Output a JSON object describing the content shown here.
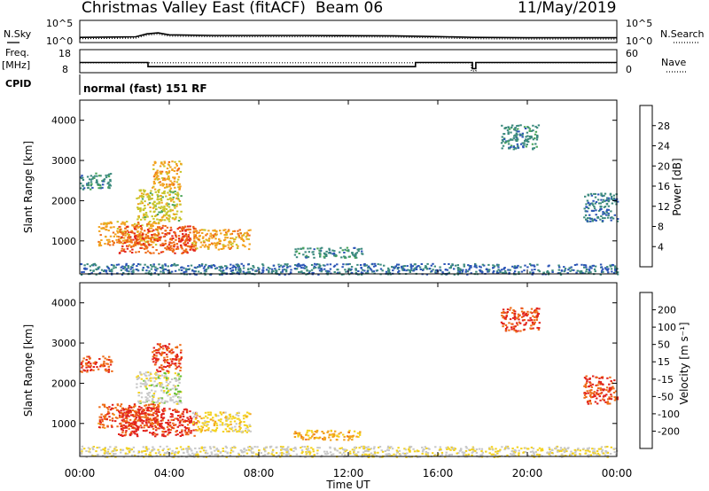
{
  "header": {
    "station": "Christmas Valley East (fitACF)",
    "beam": "Beam 06",
    "date": "11/May/2019"
  },
  "status_panel": {
    "nsky_label": "N.Sky",
    "nsearch_label": "N.Search",
    "freq_label_1": "Freq.",
    "freq_label_2": "[MHz]",
    "nave_label": "Nave",
    "cpid_label": "CPID",
    "cpid_value": "normal (fast) 151 RF",
    "noise_left_ticks": [
      "10^5",
      "10^0"
    ],
    "noise_right_ticks": [
      "10^5",
      "10^0"
    ],
    "freq_left_ticks": [
      "18",
      "8"
    ],
    "freq_right_ticks": [
      "60",
      "0"
    ],
    "nsky_level": [
      [
        0,
        0.22
      ],
      [
        2.5,
        0.25
      ],
      [
        3.0,
        0.4
      ],
      [
        3.5,
        0.45
      ],
      [
        4.0,
        0.35
      ],
      [
        6,
        0.32
      ],
      [
        10,
        0.32
      ],
      [
        14,
        0.3
      ],
      [
        16,
        0.26
      ],
      [
        17.6,
        0.22
      ],
      [
        20,
        0.2
      ],
      [
        24,
        0.2
      ]
    ],
    "freq_mhz": [
      [
        0,
        12.3
      ],
      [
        3.05,
        12.3
      ],
      [
        3.05,
        10.2
      ],
      [
        15.0,
        10.2
      ],
      [
        15.0,
        12.3
      ],
      [
        17.55,
        12.3
      ],
      [
        17.55,
        9.2
      ],
      [
        17.7,
        9.2
      ],
      [
        17.7,
        12.3
      ],
      [
        24,
        12.3
      ]
    ],
    "nave": [
      [
        0,
        25
      ],
      [
        17.5,
        25
      ],
      [
        17.5,
        0
      ],
      [
        17.7,
        0
      ],
      [
        17.7,
        25
      ],
      [
        24,
        25
      ]
    ]
  },
  "power_panel": {
    "ylabel": "Slant Range [km]",
    "yticks": [
      "1000",
      "2000",
      "3000",
      "4000"
    ],
    "colorbar_label": "Power [dB]",
    "colorbar_ticks": [
      "4",
      "8",
      "12",
      "16",
      "20",
      "24",
      "28"
    ],
    "colors": [
      "#0b16d8",
      "#2c55b6",
      "#3c8a7e",
      "#4aa55a",
      "#c9c52a",
      "#f2a21e",
      "#ee6a16",
      "#e2231c"
    ]
  },
  "velocity_panel": {
    "ylabel": "Slant Range [km]",
    "yticks": [
      "1000",
      "2000",
      "3000",
      "4000"
    ],
    "colorbar_label": "Velocity [m s⁻¹]",
    "colorbar_ticks": [
      "200",
      "100",
      "50",
      "15",
      "-15",
      "-50",
      "-100",
      "-200"
    ],
    "colors": [
      "#0b16d8",
      "#2c55b6",
      "#3c8a7e",
      "#66c22e",
      "#c8c8c8",
      "#f4d21e",
      "#f2a21e",
      "#ee6a16",
      "#e2231c"
    ]
  },
  "x_axis": {
    "label": "Time UT",
    "ticks": [
      "00:00",
      "04:00",
      "08:00",
      "12:00",
      "16:00",
      "20:00",
      "00:00"
    ]
  },
  "chart_data": {
    "type": "heatmap",
    "title": "Christmas Valley East (fitACF) Beam 06 11/May/2019",
    "xlabel": "Time UT",
    "ylabel": "Slant Range [km]",
    "x_range_hours": [
      0,
      24
    ],
    "ylim_km": [
      180,
      4500
    ],
    "panels": [
      {
        "name": "Power [dB]",
        "color_range": [
          0,
          32
        ],
        "regions": [
          {
            "t": [
              0.0,
              1.4
            ],
            "r": [
              2300,
              2700
            ],
            "value": 10
          },
          {
            "t": [
              0.8,
              3.5
            ],
            "r": [
              900,
              1500
            ],
            "value": 22
          },
          {
            "t": [
              1.7,
              5.2
            ],
            "r": [
              700,
              1400
            ],
            "value": 27
          },
          {
            "t": [
              2.5,
              4.5
            ],
            "r": [
              1500,
              2300
            ],
            "value": 18
          },
          {
            "t": [
              3.2,
              4.5
            ],
            "r": [
              2300,
              3000
            ],
            "value": 22
          },
          {
            "t": [
              5.0,
              7.6
            ],
            "r": [
              800,
              1300
            ],
            "value": 22
          },
          {
            "t": [
              9.5,
              12.6
            ],
            "r": [
              600,
              850
            ],
            "value": 10
          },
          {
            "t": [
              18.8,
              20.5
            ],
            "r": [
              3300,
              3900
            ],
            "value": 10
          },
          {
            "t": [
              22.5,
              24.0
            ],
            "r": [
              1500,
              2200
            ],
            "value": 8
          },
          {
            "t": [
              0.0,
              24.0
            ],
            "r": [
              180,
              450
            ],
            "value": 8
          }
        ]
      },
      {
        "name": "Velocity [m s-1]",
        "color_range": [
          -250,
          250
        ],
        "regions": [
          {
            "t": [
              0.0,
              1.4
            ],
            "r": [
              2300,
              2700
            ],
            "value": 200
          },
          {
            "t": [
              0.8,
              3.5
            ],
            "r": [
              900,
              1500
            ],
            "value": 180
          },
          {
            "t": [
              1.7,
              5.2
            ],
            "r": [
              700,
              1400
            ],
            "value": 220
          },
          {
            "t": [
              2.5,
              4.5
            ],
            "r": [
              1500,
              2300
            ],
            "value": 0
          },
          {
            "t": [
              3.2,
              4.5
            ],
            "r": [
              2300,
              3000
            ],
            "value": 200
          },
          {
            "t": [
              5.0,
              7.6
            ],
            "r": [
              800,
              1300
            ],
            "value": 50
          },
          {
            "t": [
              9.5,
              12.6
            ],
            "r": [
              600,
              850
            ],
            "value": 100
          },
          {
            "t": [
              18.8,
              20.5
            ],
            "r": [
              3300,
              3900
            ],
            "value": 200
          },
          {
            "t": [
              22.5,
              24.0
            ],
            "r": [
              1500,
              2200
            ],
            "value": 200
          },
          {
            "t": [
              0.0,
              24.0
            ],
            "r": [
              180,
              450
            ],
            "value": 20
          }
        ]
      }
    ]
  }
}
